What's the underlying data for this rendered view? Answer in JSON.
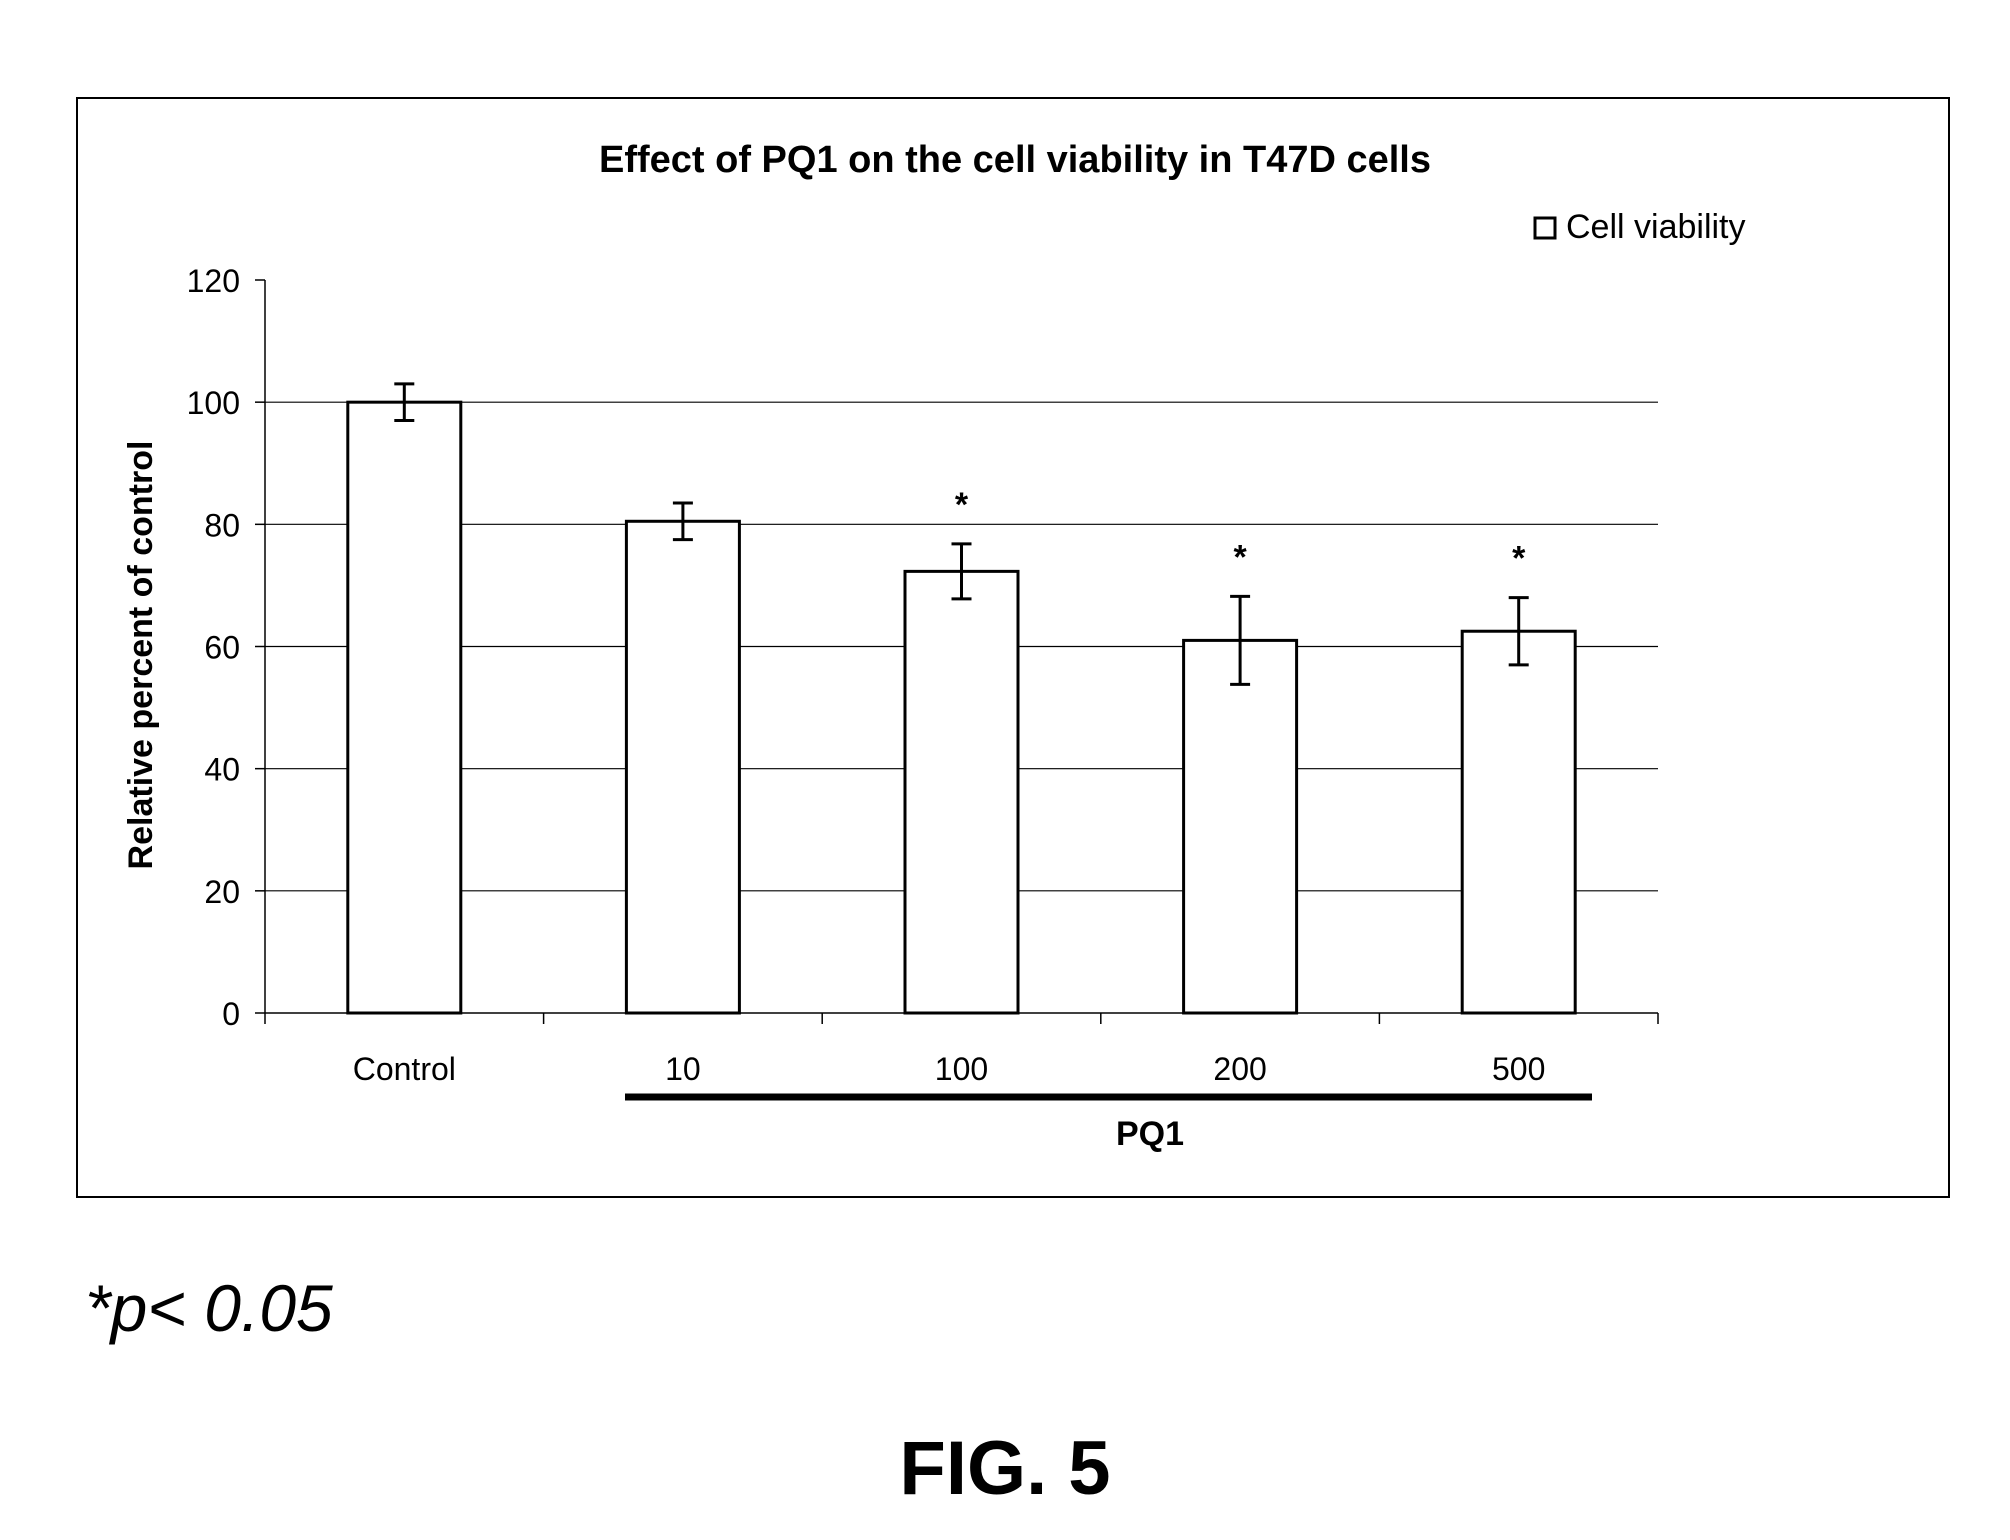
{
  "chart_data": {
    "type": "bar",
    "title": "Effect of PQ1 on the cell viability in T47D cells",
    "xlabel": "PQ1",
    "ylabel": "Relative percent of control",
    "categories": [
      "Control",
      "10",
      "100",
      "200",
      "500"
    ],
    "series": [
      {
        "name": "Cell viability",
        "values": [
          100,
          80.5,
          72.3,
          61,
          62.5
        ],
        "errors": [
          3,
          3,
          4.5,
          7.2,
          5.5
        ]
      }
    ],
    "significance": [
      "",
      "",
      "*",
      "*",
      "*"
    ],
    "grouped_categories": [
      "10",
      "100",
      "200",
      "500"
    ],
    "ylim": [
      0,
      120
    ],
    "yticks": [
      0,
      20,
      40,
      60,
      80,
      100,
      120
    ],
    "grid": true,
    "legend": "top-right",
    "colors": {
      "bar_fill": "#ffffff",
      "bar_stroke": "#000000",
      "grid": "#000000"
    }
  },
  "footnote": "*p< 0.05",
  "figure_label": "FIG. 5"
}
